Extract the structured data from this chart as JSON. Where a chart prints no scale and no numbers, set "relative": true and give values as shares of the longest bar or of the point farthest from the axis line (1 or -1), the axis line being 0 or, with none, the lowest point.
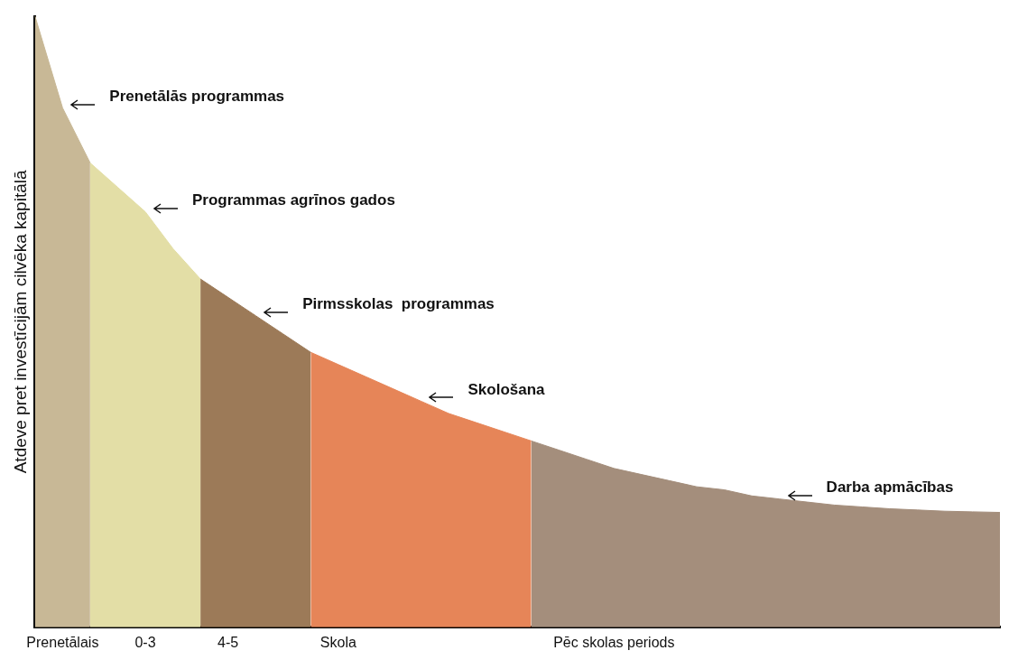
{
  "chart_data": {
    "type": "area",
    "relative": true,
    "ylabel": "Atdeve pret investīcijām cilvēka kapitālā",
    "categories": [
      null,
      "Prenetālais",
      null,
      null,
      "0-3",
      null,
      null,
      "4-5",
      null,
      null,
      null,
      "Skola",
      null,
      null,
      null,
      null,
      null,
      null,
      null,
      null,
      null,
      "Pēc skolas periods",
      null,
      null,
      null,
      null,
      null,
      null,
      null,
      null,
      null,
      null,
      null,
      null,
      null,
      null
    ],
    "series": [
      {
        "color": "#c8b896",
        "values": [
          1.0,
          0.85,
          0.76,
          null,
          null,
          null,
          null,
          null,
          null,
          null,
          null,
          null,
          null,
          null,
          null,
          null,
          null,
          null,
          null,
          null,
          null,
          null,
          null,
          null,
          null,
          null,
          null,
          null,
          null,
          null,
          null,
          null,
          null,
          null,
          null,
          null
        ]
      },
      {
        "color": "#e3dea6",
        "values": [
          null,
          null,
          0.76,
          0.72,
          0.68,
          0.62,
          0.57,
          null,
          null,
          null,
          null,
          null,
          null,
          null,
          null,
          null,
          null,
          null,
          null,
          null,
          null,
          null,
          null,
          null,
          null,
          null,
          null,
          null,
          null,
          null,
          null,
          null,
          null,
          null,
          null,
          null
        ]
      },
      {
        "color": "#9c7a58",
        "values": [
          null,
          null,
          null,
          null,
          null,
          null,
          0.57,
          0.54,
          0.51,
          0.48,
          0.45,
          null,
          null,
          null,
          null,
          null,
          null,
          null,
          null,
          null,
          null,
          null,
          null,
          null,
          null,
          null,
          null,
          null,
          null,
          null,
          null,
          null,
          null,
          null,
          null,
          null
        ]
      },
      {
        "color": "#e68558",
        "values": [
          null,
          null,
          null,
          null,
          null,
          null,
          null,
          null,
          null,
          null,
          0.45,
          0.43,
          0.41,
          0.39,
          0.37,
          0.35,
          0.335,
          0.32,
          0.305,
          null,
          null,
          null,
          null,
          null,
          null,
          null,
          null,
          null,
          null,
          null,
          null,
          null,
          null,
          null,
          null,
          null
        ]
      },
      {
        "color": "#a48e7c",
        "values": [
          null,
          null,
          null,
          null,
          null,
          null,
          null,
          null,
          null,
          null,
          null,
          null,
          null,
          null,
          null,
          null,
          null,
          null,
          0.305,
          0.29,
          0.275,
          0.26,
          0.25,
          0.24,
          0.23,
          0.225,
          0.215,
          0.21,
          0.205,
          0.2,
          0.197,
          0.194,
          0.192,
          0.19,
          0.189,
          0.188
        ]
      }
    ],
    "annotations": [
      "Prenetālās programmas",
      "Programmas agrīnos gados",
      "Pirmsskolas  programmas",
      "Skološana",
      "Darba apmācības"
    ]
  }
}
